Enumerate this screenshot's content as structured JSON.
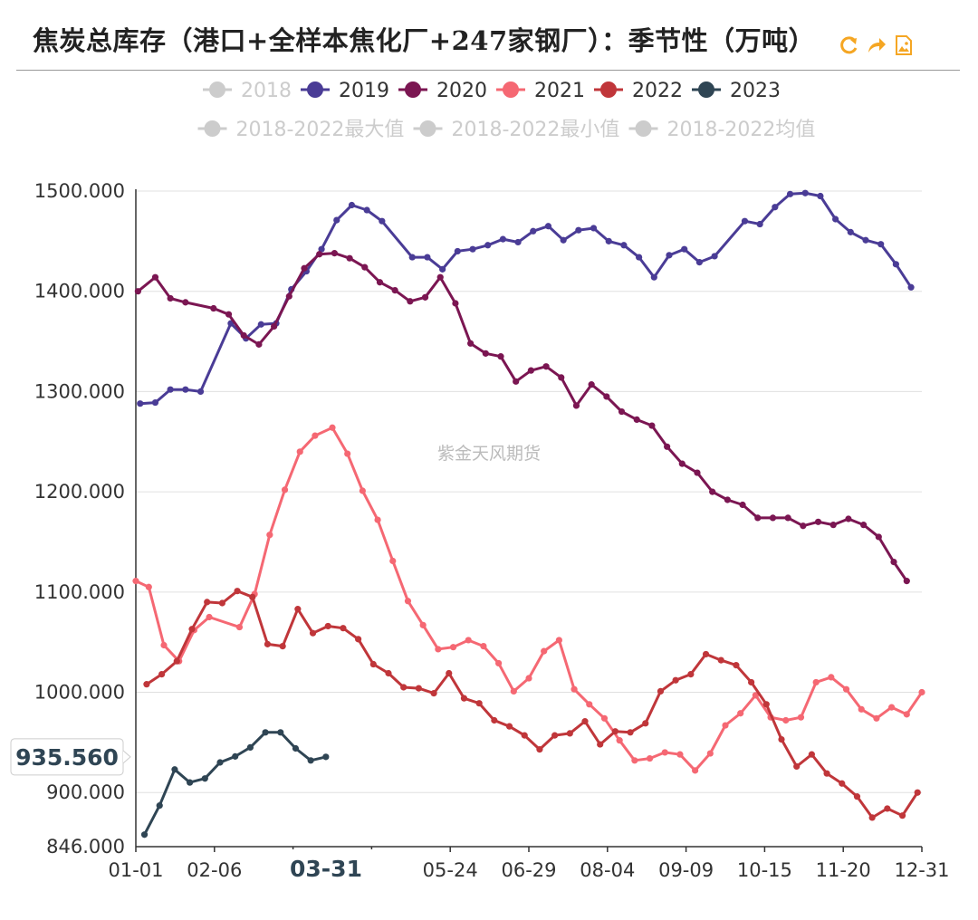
{
  "title": "焦炭总库存（港口+全样本焦化厂+247家钢厂）：季节性（万吨）",
  "toolbox": [
    {
      "name": "refresh-icon",
      "icon": "refresh"
    },
    {
      "name": "share-icon",
      "icon": "share"
    },
    {
      "name": "save-image-icon",
      "icon": "save-image"
    }
  ],
  "watermark": "紫金天风期货",
  "colors": {
    "accent": "#f5a623",
    "axis": "#333333",
    "grid": "#e0e0e0"
  },
  "tooltip": {
    "y_value": "935.560",
    "x_value": "03-31"
  },
  "chart_data": {
    "type": "line",
    "ylim": [
      846,
      1500
    ],
    "y_ticks": [
      "1500.000",
      "1400.000",
      "1300.000",
      "1200.000",
      "1100.000",
      "1000.000",
      "900.000",
      "846.000"
    ],
    "y_tick_values": [
      1500,
      1400,
      1300,
      1200,
      1100,
      1000,
      900,
      846
    ],
    "x_ticks": [
      "01-01",
      "02-06",
      "",
      "",
      "05-24",
      "06-29",
      "08-04",
      "09-09",
      "10-15",
      "11-20",
      "12-31"
    ],
    "xlim_days": [
      0,
      364
    ],
    "grid": true,
    "legend_position": "top",
    "series": [
      {
        "name": "2018",
        "color": "#cccccc",
        "disabled": true,
        "data": []
      },
      {
        "name": "2019",
        "color": "#4a3c96",
        "disabled": false,
        "data": [
          [
            2,
            1288
          ],
          [
            9,
            1289
          ],
          [
            16,
            1302
          ],
          [
            23,
            1302
          ],
          [
            30,
            1300
          ],
          [
            44,
            1368
          ],
          [
            51,
            1353
          ],
          [
            58,
            1367
          ],
          [
            65,
            1368
          ],
          [
            72,
            1402
          ],
          [
            79,
            1420
          ],
          [
            86,
            1442
          ],
          [
            93,
            1471
          ],
          [
            100,
            1486
          ],
          [
            107,
            1481
          ],
          [
            114,
            1470
          ],
          [
            128,
            1434
          ],
          [
            135,
            1434
          ],
          [
            142,
            1422
          ],
          [
            149,
            1440
          ],
          [
            156,
            1442
          ],
          [
            163,
            1446
          ],
          [
            170,
            1452
          ],
          [
            177,
            1449
          ],
          [
            184,
            1460
          ],
          [
            191,
            1465
          ],
          [
            198,
            1451
          ],
          [
            205,
            1461
          ],
          [
            212,
            1463
          ],
          [
            219,
            1450
          ],
          [
            226,
            1446
          ],
          [
            233,
            1434
          ],
          [
            240,
            1414
          ],
          [
            247,
            1436
          ],
          [
            254,
            1442
          ],
          [
            261,
            1429
          ],
          [
            268,
            1435
          ],
          [
            282,
            1470
          ],
          [
            289,
            1467
          ],
          [
            296,
            1484
          ],
          [
            303,
            1497
          ],
          [
            310,
            1498
          ],
          [
            317,
            1495
          ],
          [
            324,
            1472
          ],
          [
            331,
            1459
          ],
          [
            338,
            1451
          ],
          [
            345,
            1447
          ],
          [
            352,
            1427
          ],
          [
            359,
            1404
          ]
        ]
      },
      {
        "name": "2020",
        "color": "#7b1652",
        "disabled": false,
        "data": [
          [
            1,
            1400
          ],
          [
            9,
            1414
          ],
          [
            16,
            1393
          ],
          [
            23,
            1389
          ],
          [
            36,
            1383
          ],
          [
            43,
            1377
          ],
          [
            50,
            1356
          ],
          [
            57,
            1347
          ],
          [
            64,
            1365
          ],
          [
            71,
            1395
          ],
          [
            78,
            1423
          ],
          [
            85,
            1437
          ],
          [
            92,
            1438
          ],
          [
            99,
            1433
          ],
          [
            106,
            1424
          ],
          [
            113,
            1409
          ],
          [
            120,
            1401
          ],
          [
            127,
            1390
          ],
          [
            134,
            1394
          ],
          [
            141,
            1414
          ],
          [
            148,
            1388
          ],
          [
            155,
            1348
          ],
          [
            162,
            1338
          ],
          [
            169,
            1335
          ],
          [
            176,
            1310
          ],
          [
            183,
            1321
          ],
          [
            190,
            1325
          ],
          [
            197,
            1314
          ],
          [
            204,
            1286
          ],
          [
            211,
            1307
          ],
          [
            218,
            1295
          ],
          [
            225,
            1280
          ],
          [
            232,
            1272
          ],
          [
            239,
            1266
          ],
          [
            246,
            1245
          ],
          [
            253,
            1228
          ],
          [
            260,
            1219
          ],
          [
            267,
            1200
          ],
          [
            274,
            1192
          ],
          [
            281,
            1187
          ],
          [
            288,
            1174
          ],
          [
            295,
            1174
          ],
          [
            302,
            1174
          ],
          [
            309,
            1166
          ],
          [
            316,
            1170
          ],
          [
            323,
            1167
          ],
          [
            330,
            1173
          ],
          [
            337,
            1167
          ],
          [
            344,
            1155
          ],
          [
            351,
            1130
          ],
          [
            357,
            1111
          ]
        ]
      },
      {
        "name": "2021",
        "color": "#f56873",
        "disabled": false,
        "data": [
          [
            0,
            1111
          ],
          [
            6,
            1105
          ],
          [
            13,
            1047
          ],
          [
            20,
            1031
          ],
          [
            27,
            1062
          ],
          [
            34,
            1075
          ],
          [
            48,
            1065
          ],
          [
            55,
            1098
          ],
          [
            62,
            1157
          ],
          [
            69,
            1202
          ],
          [
            76,
            1240
          ],
          [
            83,
            1256
          ],
          [
            91,
            1264
          ],
          [
            98,
            1238
          ],
          [
            105,
            1201
          ],
          [
            112,
            1172
          ],
          [
            119,
            1131
          ],
          [
            126,
            1091
          ],
          [
            133,
            1067
          ],
          [
            140,
            1043
          ],
          [
            147,
            1045
          ],
          [
            154,
            1052
          ],
          [
            161,
            1046
          ],
          [
            168,
            1029
          ],
          [
            175,
            1001
          ],
          [
            182,
            1014
          ],
          [
            189,
            1041
          ],
          [
            196,
            1052
          ],
          [
            203,
            1003
          ],
          [
            210,
            988
          ],
          [
            217,
            974
          ],
          [
            224,
            952
          ],
          [
            231,
            932
          ],
          [
            238,
            934
          ],
          [
            245,
            940
          ],
          [
            252,
            938
          ],
          [
            259,
            922
          ],
          [
            266,
            939
          ],
          [
            273,
            967
          ],
          [
            280,
            979
          ],
          [
            287,
            997
          ],
          [
            294,
            975
          ],
          [
            301,
            972
          ],
          [
            308,
            975
          ],
          [
            315,
            1010
          ],
          [
            322,
            1015
          ],
          [
            329,
            1003
          ],
          [
            336,
            983
          ],
          [
            343,
            974
          ],
          [
            350,
            985
          ],
          [
            357,
            978
          ],
          [
            364,
            1000
          ]
        ]
      },
      {
        "name": "2022",
        "color": "#c0363a",
        "disabled": false,
        "data": [
          [
            5,
            1008
          ],
          [
            12,
            1018
          ],
          [
            19,
            1031
          ],
          [
            26,
            1063
          ],
          [
            33,
            1090
          ],
          [
            40,
            1089
          ],
          [
            47,
            1101
          ],
          [
            54,
            1095
          ],
          [
            61,
            1048
          ],
          [
            68,
            1046
          ],
          [
            75,
            1083
          ],
          [
            82,
            1059
          ],
          [
            89,
            1066
          ],
          [
            96,
            1064
          ],
          [
            103,
            1053
          ],
          [
            110,
            1028
          ],
          [
            117,
            1019
          ],
          [
            124,
            1005
          ],
          [
            131,
            1004
          ],
          [
            138,
            999
          ],
          [
            145,
            1019
          ],
          [
            152,
            994
          ],
          [
            159,
            989
          ],
          [
            166,
            972
          ],
          [
            173,
            966
          ],
          [
            180,
            957
          ],
          [
            187,
            943
          ],
          [
            194,
            957
          ],
          [
            201,
            959
          ],
          [
            208,
            971
          ],
          [
            215,
            948
          ],
          [
            222,
            961
          ],
          [
            229,
            960
          ],
          [
            236,
            969
          ],
          [
            243,
            1001
          ],
          [
            250,
            1012
          ],
          [
            257,
            1018
          ],
          [
            264,
            1038
          ],
          [
            271,
            1032
          ],
          [
            278,
            1027
          ],
          [
            285,
            1010
          ],
          [
            292,
            988
          ],
          [
            299,
            953
          ],
          [
            306,
            926
          ],
          [
            313,
            938
          ],
          [
            320,
            919
          ],
          [
            327,
            909
          ],
          [
            334,
            896
          ],
          [
            341,
            875
          ],
          [
            348,
            884
          ],
          [
            355,
            877
          ],
          [
            362,
            900
          ]
        ]
      },
      {
        "name": "2023",
        "color": "#2f4554",
        "disabled": false,
        "data": [
          [
            4,
            858
          ],
          [
            11,
            887
          ],
          [
            18,
            923
          ],
          [
            25,
            910
          ],
          [
            32,
            914
          ],
          [
            39,
            930
          ],
          [
            46,
            936
          ],
          [
            53,
            945
          ],
          [
            60,
            960
          ],
          [
            67,
            960
          ],
          [
            74,
            944
          ],
          [
            81,
            932
          ],
          [
            88,
            935.56
          ]
        ]
      },
      {
        "name": "2018-2022最大值",
        "color": "#cccccc",
        "disabled": true,
        "data": []
      },
      {
        "name": "2018-2022最小值",
        "color": "#cccccc",
        "disabled": true,
        "data": []
      },
      {
        "name": "2018-2022均值",
        "color": "#cccccc",
        "disabled": true,
        "data": []
      }
    ]
  }
}
